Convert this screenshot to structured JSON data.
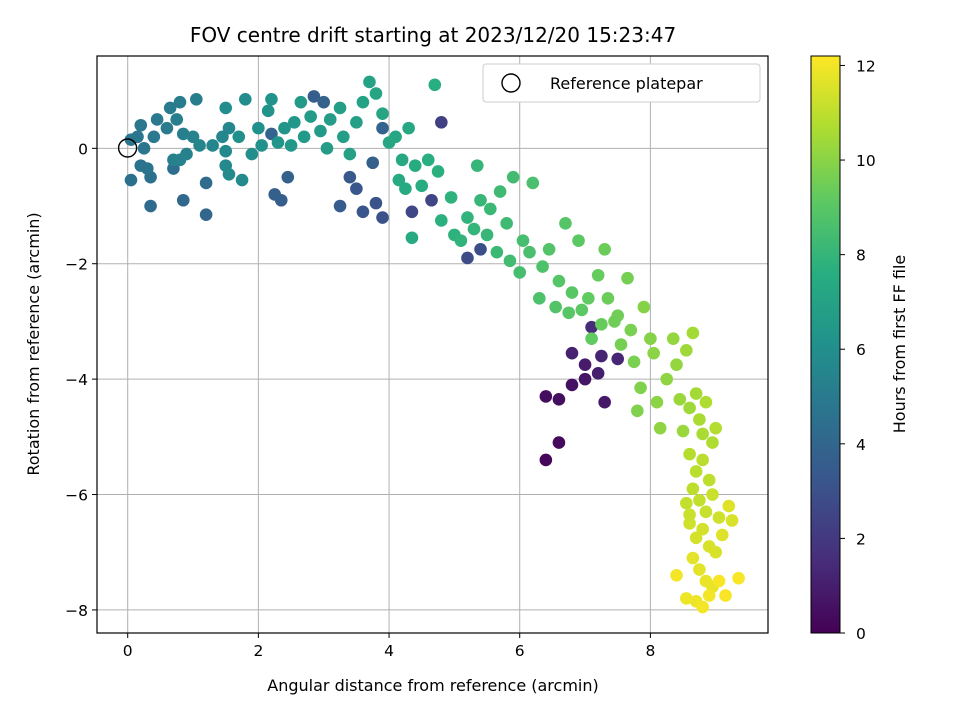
{
  "chart_data": {
    "type": "scatter",
    "title": "FOV centre drift starting at 2023/12/20 15:23:47",
    "xlabel": "Angular distance from reference (arcmin)",
    "ylabel": "Rotation from reference (arcmin)",
    "xlim": [
      -0.47,
      9.8
    ],
    "ylim": [
      -8.4,
      1.6
    ],
    "xticks": [
      0,
      2,
      4,
      6,
      8
    ],
    "yticks": [
      0,
      -2,
      -4,
      -6,
      -8
    ],
    "grid": true,
    "legend": {
      "position": "top-right",
      "entries": [
        "Reference platepar"
      ]
    },
    "reference_point": {
      "x": 0,
      "y": 0,
      "label": "Reference platepar"
    },
    "colorbar": {
      "label": "Hours from first FF file",
      "colormap": "viridis",
      "range": [
        0,
        12.2
      ],
      "ticks": [
        0,
        2,
        4,
        6,
        8,
        10,
        12
      ]
    },
    "series": [
      {
        "name": "",
        "points": [
          {
            "x": 6.4,
            "y": -5.4,
            "c": 0.2
          },
          {
            "x": 6.6,
            "y": -5.1,
            "c": 0.3
          },
          {
            "x": 6.4,
            "y": -4.3,
            "c": 0.4
          },
          {
            "x": 6.6,
            "y": -4.35,
            "c": 0.5
          },
          {
            "x": 6.8,
            "y": -4.1,
            "c": 0.6
          },
          {
            "x": 7.0,
            "y": -4.0,
            "c": 0.7
          },
          {
            "x": 7.3,
            "y": -4.4,
            "c": 0.8
          },
          {
            "x": 7.0,
            "y": -3.75,
            "c": 0.9
          },
          {
            "x": 7.2,
            "y": -3.9,
            "c": 1.0
          },
          {
            "x": 6.8,
            "y": -3.55,
            "c": 1.1
          },
          {
            "x": 7.25,
            "y": -3.6,
            "c": 1.2
          },
          {
            "x": 7.5,
            "y": -3.65,
            "c": 1.3
          },
          {
            "x": 7.1,
            "y": -3.1,
            "c": 1.5
          },
          {
            "x": 4.8,
            "y": 0.45,
            "c": 2.3
          },
          {
            "x": 4.65,
            "y": -0.9,
            "c": 2.5
          },
          {
            "x": 4.35,
            "y": -1.1,
            "c": 2.6
          },
          {
            "x": 5.2,
            "y": -1.9,
            "c": 2.8
          },
          {
            "x": 5.4,
            "y": -1.75,
            "c": 2.9
          },
          {
            "x": 3.9,
            "y": -1.2,
            "c": 3.0
          },
          {
            "x": 3.8,
            "y": -0.95,
            "c": 3.1
          },
          {
            "x": 3.6,
            "y": -1.1,
            "c": 3.2
          },
          {
            "x": 3.5,
            "y": -0.7,
            "c": 3.3
          },
          {
            "x": 3.4,
            "y": -0.5,
            "c": 3.4
          },
          {
            "x": 3.25,
            "y": -1.0,
            "c": 3.5
          },
          {
            "x": 2.35,
            "y": -0.9,
            "c": 3.6
          },
          {
            "x": 2.25,
            "y": -0.8,
            "c": 3.7
          },
          {
            "x": 2.45,
            "y": -0.5,
            "c": 3.8
          },
          {
            "x": 2.85,
            "y": 0.9,
            "c": 3.6
          },
          {
            "x": 3.0,
            "y": 0.8,
            "c": 3.8
          },
          {
            "x": 2.2,
            "y": 0.25,
            "c": 3.9
          },
          {
            "x": 3.75,
            "y": -0.25,
            "c": 3.7
          },
          {
            "x": 3.9,
            "y": 0.35,
            "c": 3.9
          },
          {
            "x": 1.2,
            "y": -1.15,
            "c": 4.0
          },
          {
            "x": 0.35,
            "y": -1.0,
            "c": 4.2
          },
          {
            "x": 0.85,
            "y": -0.9,
            "c": 4.1
          },
          {
            "x": 1.2,
            "y": -0.6,
            "c": 4.3
          },
          {
            "x": 0.7,
            "y": -0.35,
            "c": 4.4
          },
          {
            "x": 0.05,
            "y": -0.55,
            "c": 4.5
          },
          {
            "x": 0.35,
            "y": -0.5,
            "c": 4.5
          },
          {
            "x": 0.3,
            "y": -0.35,
            "c": 4.6
          },
          {
            "x": 0.2,
            "y": -0.3,
            "c": 4.6
          },
          {
            "x": 0.25,
            "y": 0.0,
            "c": 4.7
          },
          {
            "x": 0.15,
            "y": 0.2,
            "c": 4.7
          },
          {
            "x": 0.05,
            "y": 0.15,
            "c": 4.8
          },
          {
            "x": 0.2,
            "y": 0.4,
            "c": 4.8
          },
          {
            "x": 0.4,
            "y": 0.2,
            "c": 4.9
          },
          {
            "x": 0.45,
            "y": 0.5,
            "c": 4.9
          },
          {
            "x": 0.6,
            "y": 0.35,
            "c": 5.0
          },
          {
            "x": 0.65,
            "y": 0.7,
            "c": 5.0
          },
          {
            "x": 0.8,
            "y": 0.8,
            "c": 5.1
          },
          {
            "x": 1.05,
            "y": 0.85,
            "c": 5.1
          },
          {
            "x": 0.75,
            "y": 0.5,
            "c": 5.2
          },
          {
            "x": 0.85,
            "y": 0.25,
            "c": 5.2
          },
          {
            "x": 0.9,
            "y": -0.1,
            "c": 5.3
          },
          {
            "x": 0.7,
            "y": -0.2,
            "c": 5.3
          },
          {
            "x": 0.8,
            "y": -0.2,
            "c": 5.4
          },
          {
            "x": 1.0,
            "y": 0.2,
            "c": 5.4
          },
          {
            "x": 1.1,
            "y": 0.05,
            "c": 5.5
          },
          {
            "x": 1.3,
            "y": 0.05,
            "c": 5.5
          },
          {
            "x": 1.45,
            "y": 0.2,
            "c": 5.6
          },
          {
            "x": 1.55,
            "y": 0.35,
            "c": 5.6
          },
          {
            "x": 1.5,
            "y": -0.05,
            "c": 5.7
          },
          {
            "x": 1.5,
            "y": -0.3,
            "c": 5.7
          },
          {
            "x": 1.55,
            "y": -0.45,
            "c": 5.8
          },
          {
            "x": 1.75,
            "y": -0.55,
            "c": 5.8
          },
          {
            "x": 1.5,
            "y": 0.7,
            "c": 5.9
          },
          {
            "x": 1.8,
            "y": 0.85,
            "c": 5.9
          },
          {
            "x": 1.7,
            "y": 0.2,
            "c": 6.0
          },
          {
            "x": 1.9,
            "y": -0.1,
            "c": 6.0
          },
          {
            "x": 2.05,
            "y": 0.05,
            "c": 6.1
          },
          {
            "x": 2.0,
            "y": 0.35,
            "c": 6.1
          },
          {
            "x": 2.15,
            "y": 0.65,
            "c": 6.2
          },
          {
            "x": 2.2,
            "y": 0.85,
            "c": 6.2
          },
          {
            "x": 2.3,
            "y": 0.1,
            "c": 6.3
          },
          {
            "x": 2.4,
            "y": 0.35,
            "c": 6.3
          },
          {
            "x": 2.5,
            "y": 0.05,
            "c": 6.4
          },
          {
            "x": 2.55,
            "y": 0.45,
            "c": 6.4
          },
          {
            "x": 2.65,
            "y": 0.8,
            "c": 6.5
          },
          {
            "x": 2.7,
            "y": 0.2,
            "c": 6.5
          },
          {
            "x": 2.8,
            "y": 0.55,
            "c": 6.6
          },
          {
            "x": 2.95,
            "y": 0.3,
            "c": 6.6
          },
          {
            "x": 3.05,
            "y": 0.0,
            "c": 6.7
          },
          {
            "x": 3.1,
            "y": 0.5,
            "c": 6.7
          },
          {
            "x": 3.25,
            "y": 0.7,
            "c": 6.8
          },
          {
            "x": 3.3,
            "y": 0.2,
            "c": 6.8
          },
          {
            "x": 3.4,
            "y": -0.1,
            "c": 6.9
          },
          {
            "x": 3.5,
            "y": 0.45,
            "c": 6.9
          },
          {
            "x": 3.6,
            "y": 0.8,
            "c": 7.0
          },
          {
            "x": 3.7,
            "y": 1.15,
            "c": 7.0
          },
          {
            "x": 3.8,
            "y": 0.95,
            "c": 7.1
          },
          {
            "x": 3.9,
            "y": 0.6,
            "c": 7.1
          },
          {
            "x": 4.0,
            "y": 0.1,
            "c": 7.2
          },
          {
            "x": 4.1,
            "y": 0.2,
            "c": 7.2
          },
          {
            "x": 4.2,
            "y": -0.2,
            "c": 7.3
          },
          {
            "x": 4.3,
            "y": 0.35,
            "c": 7.3
          },
          {
            "x": 4.15,
            "y": -0.55,
            "c": 7.4
          },
          {
            "x": 4.25,
            "y": -0.7,
            "c": 7.4
          },
          {
            "x": 4.35,
            "y": -1.55,
            "c": 7.4
          },
          {
            "x": 4.4,
            "y": -0.3,
            "c": 7.5
          },
          {
            "x": 4.5,
            "y": -0.65,
            "c": 7.5
          },
          {
            "x": 4.6,
            "y": -0.2,
            "c": 7.6
          },
          {
            "x": 4.7,
            "y": 1.1,
            "c": 7.6
          },
          {
            "x": 4.75,
            "y": -0.4,
            "c": 7.7
          },
          {
            "x": 4.8,
            "y": -1.25,
            "c": 7.7
          },
          {
            "x": 4.95,
            "y": -0.85,
            "c": 7.8
          },
          {
            "x": 5.0,
            "y": -1.5,
            "c": 7.8
          },
          {
            "x": 5.1,
            "y": -1.6,
            "c": 7.9
          },
          {
            "x": 5.2,
            "y": -1.2,
            "c": 7.9
          },
          {
            "x": 5.3,
            "y": -1.4,
            "c": 8.0
          },
          {
            "x": 5.35,
            "y": -0.3,
            "c": 8.0
          },
          {
            "x": 5.4,
            "y": -0.9,
            "c": 8.1
          },
          {
            "x": 5.5,
            "y": -1.5,
            "c": 8.1
          },
          {
            "x": 5.55,
            "y": -1.05,
            "c": 8.2
          },
          {
            "x": 5.65,
            "y": -1.8,
            "c": 8.2
          },
          {
            "x": 5.7,
            "y": -0.75,
            "c": 8.3
          },
          {
            "x": 5.8,
            "y": -1.3,
            "c": 8.3
          },
          {
            "x": 5.85,
            "y": -1.95,
            "c": 8.4
          },
          {
            "x": 5.9,
            "y": -0.5,
            "c": 8.4
          },
          {
            "x": 6.0,
            "y": -2.15,
            "c": 8.5
          },
          {
            "x": 6.05,
            "y": -1.6,
            "c": 8.5
          },
          {
            "x": 6.15,
            "y": -1.8,
            "c": 8.6
          },
          {
            "x": 6.2,
            "y": -0.6,
            "c": 8.6
          },
          {
            "x": 6.3,
            "y": -2.6,
            "c": 8.7
          },
          {
            "x": 6.35,
            "y": -2.05,
            "c": 8.7
          },
          {
            "x": 6.45,
            "y": -1.75,
            "c": 8.8
          },
          {
            "x": 6.55,
            "y": -2.75,
            "c": 8.8
          },
          {
            "x": 6.6,
            "y": -2.3,
            "c": 8.9
          },
          {
            "x": 6.7,
            "y": -1.3,
            "c": 8.9
          },
          {
            "x": 6.75,
            "y": -2.85,
            "c": 9.0
          },
          {
            "x": 6.8,
            "y": -2.5,
            "c": 9.0
          },
          {
            "x": 6.9,
            "y": -1.6,
            "c": 9.1
          },
          {
            "x": 6.95,
            "y": -2.8,
            "c": 9.1
          },
          {
            "x": 7.05,
            "y": -2.6,
            "c": 9.2
          },
          {
            "x": 7.1,
            "y": -3.3,
            "c": 9.2
          },
          {
            "x": 7.2,
            "y": -2.2,
            "c": 9.3
          },
          {
            "x": 7.25,
            "y": -3.05,
            "c": 9.3
          },
          {
            "x": 7.3,
            "y": -1.75,
            "c": 9.4
          },
          {
            "x": 7.35,
            "y": -2.6,
            "c": 9.4
          },
          {
            "x": 7.45,
            "y": -3.0,
            "c": 9.5
          },
          {
            "x": 7.5,
            "y": -2.9,
            "c": 9.5
          },
          {
            "x": 7.55,
            "y": -3.4,
            "c": 9.6
          },
          {
            "x": 7.65,
            "y": -2.25,
            "c": 9.6
          },
          {
            "x": 7.7,
            "y": -3.15,
            "c": 9.7
          },
          {
            "x": 7.75,
            "y": -3.7,
            "c": 9.7
          },
          {
            "x": 7.8,
            "y": -4.55,
            "c": 9.8
          },
          {
            "x": 7.85,
            "y": -4.15,
            "c": 9.8
          },
          {
            "x": 7.9,
            "y": -2.75,
            "c": 9.9
          },
          {
            "x": 8.0,
            "y": -3.3,
            "c": 9.9
          },
          {
            "x": 8.05,
            "y": -3.55,
            "c": 10.0
          },
          {
            "x": 8.1,
            "y": -4.4,
            "c": 10.0
          },
          {
            "x": 8.15,
            "y": -4.85,
            "c": 10.1
          },
          {
            "x": 8.25,
            "y": -4.0,
            "c": 10.1
          },
          {
            "x": 8.35,
            "y": -3.3,
            "c": 10.2
          },
          {
            "x": 8.4,
            "y": -3.75,
            "c": 10.2
          },
          {
            "x": 8.45,
            "y": -4.35,
            "c": 10.3
          },
          {
            "x": 8.5,
            "y": -4.9,
            "c": 10.3
          },
          {
            "x": 8.55,
            "y": -3.5,
            "c": 10.4
          },
          {
            "x": 8.6,
            "y": -4.5,
            "c": 10.4
          },
          {
            "x": 8.65,
            "y": -3.2,
            "c": 10.5
          },
          {
            "x": 8.7,
            "y": -4.25,
            "c": 10.5
          },
          {
            "x": 8.75,
            "y": -4.7,
            "c": 10.6
          },
          {
            "x": 8.8,
            "y": -4.95,
            "c": 10.6
          },
          {
            "x": 8.85,
            "y": -4.4,
            "c": 10.7
          },
          {
            "x": 8.95,
            "y": -5.1,
            "c": 10.7
          },
          {
            "x": 9.0,
            "y": -4.85,
            "c": 10.8
          },
          {
            "x": 8.6,
            "y": -5.3,
            "c": 10.8
          },
          {
            "x": 8.7,
            "y": -5.6,
            "c": 10.9
          },
          {
            "x": 8.8,
            "y": -5.4,
            "c": 10.9
          },
          {
            "x": 8.9,
            "y": -5.75,
            "c": 11.0
          },
          {
            "x": 8.65,
            "y": -5.9,
            "c": 11.0
          },
          {
            "x": 8.55,
            "y": -6.15,
            "c": 11.1
          },
          {
            "x": 8.75,
            "y": -6.1,
            "c": 11.1
          },
          {
            "x": 8.85,
            "y": -6.3,
            "c": 11.2
          },
          {
            "x": 8.95,
            "y": -6.0,
            "c": 11.2
          },
          {
            "x": 9.05,
            "y": -6.4,
            "c": 11.3
          },
          {
            "x": 8.6,
            "y": -6.5,
            "c": 11.3
          },
          {
            "x": 8.7,
            "y": -6.75,
            "c": 11.4
          },
          {
            "x": 8.8,
            "y": -6.6,
            "c": 11.4
          },
          {
            "x": 8.9,
            "y": -6.9,
            "c": 11.5
          },
          {
            "x": 9.0,
            "y": -7.0,
            "c": 11.5
          },
          {
            "x": 9.1,
            "y": -6.7,
            "c": 11.6
          },
          {
            "x": 9.2,
            "y": -6.2,
            "c": 11.6
          },
          {
            "x": 8.65,
            "y": -7.1,
            "c": 11.7
          },
          {
            "x": 8.75,
            "y": -7.3,
            "c": 11.7
          },
          {
            "x": 8.85,
            "y": -7.5,
            "c": 11.8
          },
          {
            "x": 8.95,
            "y": -7.6,
            "c": 11.8
          },
          {
            "x": 8.55,
            "y": -7.8,
            "c": 11.9
          },
          {
            "x": 8.7,
            "y": -7.85,
            "c": 11.9
          },
          {
            "x": 8.8,
            "y": -7.95,
            "c": 12.0
          },
          {
            "x": 8.9,
            "y": -7.75,
            "c": 12.0
          },
          {
            "x": 9.05,
            "y": -7.5,
            "c": 12.1
          },
          {
            "x": 9.15,
            "y": -7.75,
            "c": 12.1
          },
          {
            "x": 9.35,
            "y": -7.45,
            "c": 12.1
          },
          {
            "x": 8.4,
            "y": -7.4,
            "c": 12.0
          },
          {
            "x": 8.6,
            "y": -6.35,
            "c": 11.2
          },
          {
            "x": 9.25,
            "y": -6.45,
            "c": 11.5
          }
        ]
      }
    ]
  }
}
